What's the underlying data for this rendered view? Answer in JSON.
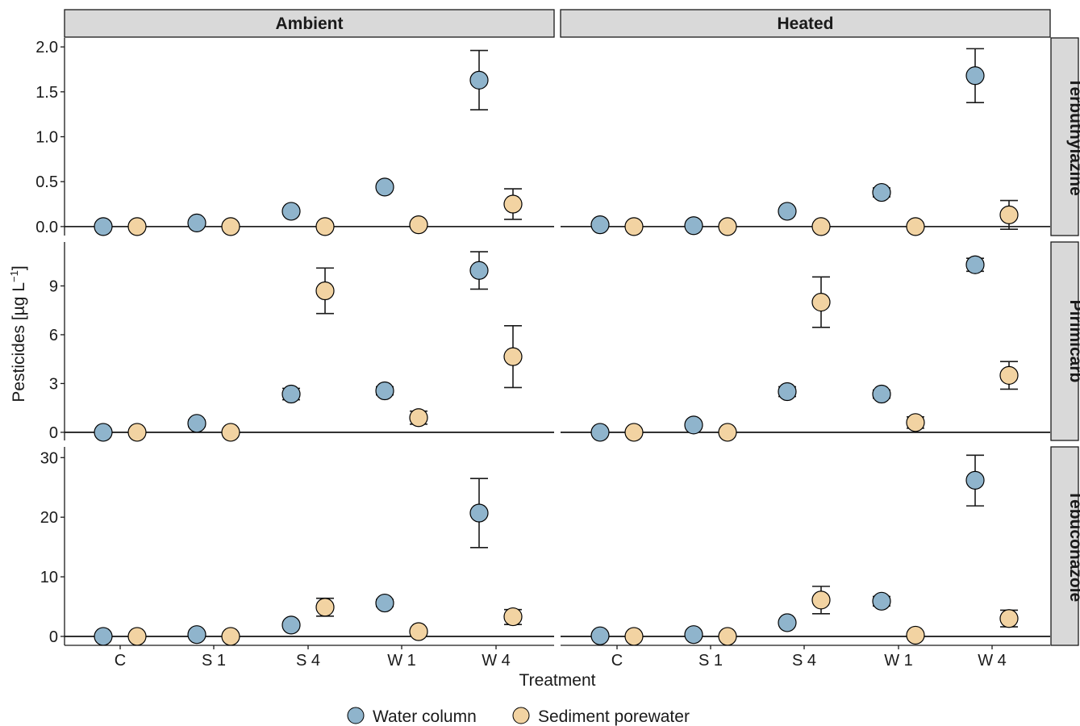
{
  "chart_data": {
    "type": "scatter",
    "xlabel": "Treatment",
    "ylabel": "Pesticides [µg L",
    "ylabel_sup": "−1",
    "ylabel_close": "]",
    "categories": [
      "C",
      "S 1",
      "S 4",
      "W 1",
      "W 4"
    ],
    "columns": [
      "Ambient",
      "Heated"
    ],
    "rows": [
      "Terbuthylazine",
      "Pirimicarb",
      "Tebuconazole"
    ],
    "legend_position": "bottom",
    "grid": false,
    "series": [
      {
        "key": "water",
        "name": "Water column",
        "color": "#8FB4CC"
      },
      {
        "key": "sediment",
        "name": "Sediment porewater",
        "color": "#F2D3A2"
      }
    ],
    "panels": [
      {
        "row": "Terbuthylazine",
        "ylim": [
          -0.1,
          2.1
        ],
        "yticks": [
          0.0,
          0.5,
          1.0,
          1.5,
          2.0
        ],
        "ytick_labels": [
          "0.0",
          "0.5",
          "1.0",
          "1.5",
          "2.0"
        ],
        "data": {
          "Ambient": {
            "water": {
              "mean": [
                0.0,
                0.04,
                0.17,
                0.44,
                1.63
              ],
              "lo": [
                0.0,
                0.03,
                0.14,
                0.42,
                1.3
              ],
              "hi": [
                0.0,
                0.05,
                0.2,
                0.46,
                1.96
              ]
            },
            "sediment": {
              "mean": [
                0.0,
                0.0,
                0.0,
                0.02,
                0.25
              ],
              "lo": [
                0.0,
                0.0,
                0.0,
                0.02,
                0.08
              ],
              "hi": [
                0.0,
                0.0,
                0.0,
                0.02,
                0.42
              ]
            }
          },
          "Heated": {
            "water": {
              "mean": [
                0.02,
                0.01,
                0.17,
                0.38,
                1.68
              ],
              "lo": [
                0.02,
                0.01,
                0.15,
                0.33,
                1.38
              ],
              "hi": [
                0.02,
                0.01,
                0.19,
                0.43,
                1.98
              ]
            },
            "sediment": {
              "mean": [
                0.0,
                0.0,
                0.0,
                0.0,
                0.13
              ],
              "lo": [
                0.0,
                0.0,
                0.0,
                0.0,
                -0.03
              ],
              "hi": [
                0.0,
                0.0,
                0.0,
                0.0,
                0.29
              ]
            }
          }
        }
      },
      {
        "row": "Pirimicarb",
        "ylim": [
          -0.5,
          11.7
        ],
        "yticks": [
          0,
          3,
          6,
          9
        ],
        "ytick_labels": [
          "0",
          "3",
          "6",
          "9"
        ],
        "data": {
          "Ambient": {
            "water": {
              "mean": [
                0.0,
                0.55,
                2.35,
                2.55,
                9.95
              ],
              "lo": [
                0.0,
                0.35,
                2.0,
                2.3,
                8.8
              ],
              "hi": [
                0.0,
                0.75,
                2.7,
                2.8,
                11.1
              ]
            },
            "sediment": {
              "mean": [
                0.0,
                0.0,
                8.7,
                0.9,
                4.65
              ],
              "lo": [
                0.0,
                0.0,
                7.3,
                0.5,
                2.75
              ],
              "hi": [
                0.0,
                0.0,
                10.1,
                1.3,
                6.55
              ]
            }
          },
          "Heated": {
            "water": {
              "mean": [
                0.0,
                0.45,
                2.5,
                2.35,
                10.3
              ],
              "lo": [
                0.0,
                0.35,
                2.2,
                2.1,
                9.9
              ],
              "hi": [
                0.0,
                0.55,
                2.8,
                2.6,
                10.7
              ]
            },
            "sediment": {
              "mean": [
                0.0,
                0.0,
                8.0,
                0.6,
                3.5
              ],
              "lo": [
                0.0,
                0.0,
                6.45,
                0.25,
                2.65
              ],
              "hi": [
                0.0,
                0.0,
                9.55,
                0.95,
                4.35
              ]
            }
          }
        }
      },
      {
        "row": "Tebuconazole",
        "ylim": [
          -1.5,
          31.8
        ],
        "yticks": [
          0,
          10,
          20,
          30
        ],
        "ytick_labels": [
          "0",
          "10",
          "20",
          "30"
        ],
        "data": {
          "Ambient": {
            "water": {
              "mean": [
                0.0,
                0.3,
                1.9,
                5.6,
                20.7
              ],
              "lo": [
                0.0,
                0.2,
                1.6,
                5.0,
                14.9
              ],
              "hi": [
                0.0,
                0.4,
                2.2,
                6.2,
                26.5
              ]
            },
            "sediment": {
              "mean": [
                0.0,
                0.0,
                4.9,
                0.8,
                3.3
              ],
              "lo": [
                0.0,
                0.0,
                3.4,
                0.4,
                2.0
              ],
              "hi": [
                0.0,
                0.0,
                6.4,
                1.2,
                4.5
              ]
            }
          },
          "Heated": {
            "water": {
              "mean": [
                0.1,
                0.3,
                2.3,
                5.9,
                26.2
              ],
              "lo": [
                0.1,
                0.2,
                2.0,
                5.1,
                21.9
              ],
              "hi": [
                0.1,
                0.4,
                2.6,
                6.7,
                30.4
              ]
            },
            "sediment": {
              "mean": [
                0.0,
                0.0,
                6.1,
                0.2,
                3.0
              ],
              "lo": [
                0.0,
                0.0,
                3.8,
                0.0,
                1.6
              ],
              "hi": [
                0.0,
                0.0,
                8.4,
                0.4,
                4.4
              ]
            }
          }
        }
      }
    ]
  }
}
